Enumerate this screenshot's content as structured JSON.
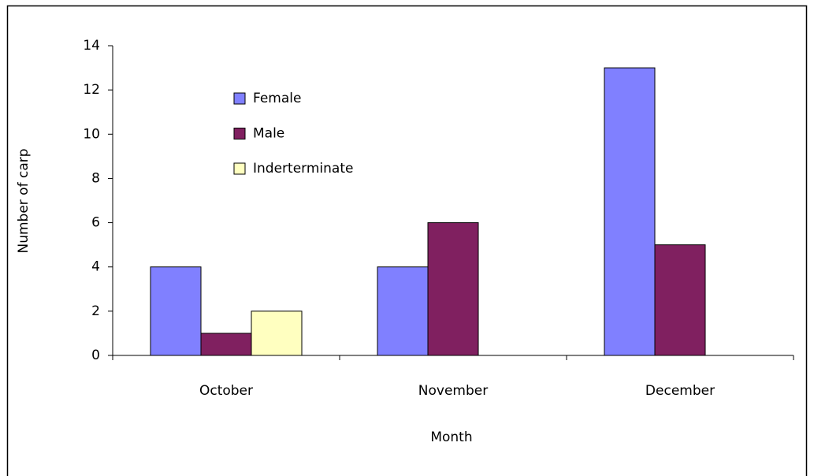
{
  "chart_data": {
    "type": "bar",
    "x_label": "Month",
    "y_label": "Number of carp",
    "categories": [
      "October",
      "November",
      "December"
    ],
    "series": [
      {
        "name": "Female",
        "color": "#8080ff",
        "values": [
          4,
          4,
          13
        ]
      },
      {
        "name": "Male",
        "color": "#802060",
        "values": [
          1,
          6,
          5
        ]
      },
      {
        "name": "Inderterminate",
        "color": "#ffffc0",
        "values": [
          2,
          0,
          0
        ]
      }
    ],
    "ylim": [
      0,
      14
    ],
    "yticks": [
      0,
      2,
      4,
      6,
      8,
      10,
      12,
      14
    ]
  }
}
